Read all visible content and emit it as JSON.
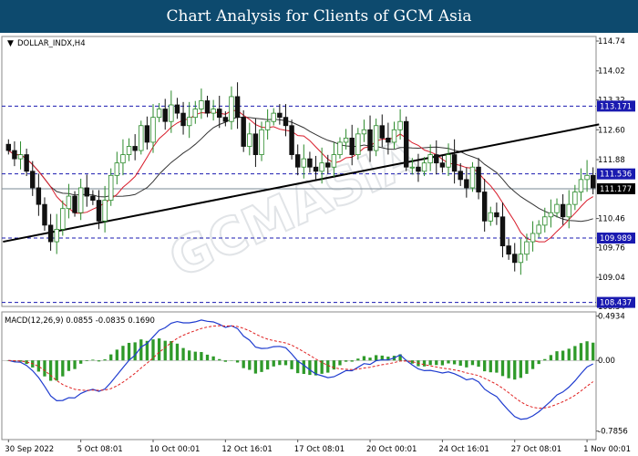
{
  "header": {
    "title": "Chart Analysis for Clients of GCM Asia"
  },
  "chart_data": {
    "type": "candlestick",
    "symbol_label": "DOLLAR_INDX,H4",
    "watermark": "GCMASIA",
    "price_axis": {
      "ylim": [
        108.34,
        114.85
      ],
      "ticks": [
        114.74,
        114.02,
        113.32,
        112.6,
        111.88,
        110.46,
        109.76,
        109.04,
        108.34
      ]
    },
    "levels": [
      {
        "value": 113.171,
        "label": "113.171",
        "style": "dashed",
        "color": "#1a1ab0"
      },
      {
        "value": 111.536,
        "label": "111.536",
        "style": "dashed",
        "color": "#1a1ab0"
      },
      {
        "value": 111.177,
        "label": "111.177",
        "style": "solid",
        "color": "#7a8a96"
      },
      {
        "value": 109.989,
        "label": "109.989",
        "style": "dashed",
        "color": "#1a1ab0"
      },
      {
        "value": 108.437,
        "label": "108.437",
        "style": "dashed",
        "color": "#1a1ab0"
      }
    ],
    "trendline": {
      "from": [
        0,
        109.9
      ],
      "to": [
        98,
        112.73
      ]
    },
    "time_axis": {
      "labels": [
        {
          "i": 0,
          "text": "30 Sep 2022"
        },
        {
          "i": 12,
          "text": "5 Oct 08:01"
        },
        {
          "i": 24,
          "text": "10 Oct 00:01"
        },
        {
          "i": 36,
          "text": "12 Oct 16:01"
        },
        {
          "i": 48,
          "text": "17 Oct 08:01"
        },
        {
          "i": 60,
          "text": "20 Oct 00:01"
        },
        {
          "i": 72,
          "text": "24 Oct 16:01"
        },
        {
          "i": 84,
          "text": "27 Oct 08:01"
        },
        {
          "i": 96,
          "text": "1 Nov 00:01"
        }
      ]
    },
    "close": [
      112.1,
      111.9,
      112.0,
      111.6,
      111.2,
      110.8,
      110.3,
      109.9,
      110.2,
      110.7,
      111.0,
      110.6,
      111.2,
      111.0,
      110.9,
      110.4,
      110.9,
      111.5,
      111.8,
      112.0,
      112.2,
      112.1,
      112.7,
      112.3,
      112.9,
      113.1,
      112.8,
      113.2,
      113.0,
      112.7,
      112.9,
      113.1,
      113.3,
      113.0,
      113.1,
      112.9,
      112.8,
      113.4,
      112.9,
      112.2,
      112.5,
      112.0,
      112.6,
      112.8,
      113.0,
      112.9,
      112.7,
      112.0,
      111.7,
      111.9,
      111.7,
      111.6,
      111.8,
      111.7,
      112.0,
      112.3,
      112.4,
      112.0,
      112.5,
      112.6,
      112.1,
      112.7,
      112.4,
      112.3,
      112.6,
      112.8,
      111.7,
      111.7,
      111.6,
      111.8,
      112.0,
      111.8,
      111.7,
      112.0,
      111.6,
      111.4,
      111.2,
      111.7,
      111.1,
      110.4,
      110.6,
      110.5,
      109.8,
      109.6,
      109.4,
      109.6,
      109.9,
      110.1,
      110.3,
      110.5,
      110.6,
      110.8,
      110.5,
      110.8,
      111.1,
      111.4,
      111.5,
      111.2
    ],
    "moving_averages": [
      {
        "name": "MA fast",
        "color": "#d81b2a"
      },
      {
        "name": "MA slow",
        "color": "#333333"
      }
    ],
    "macd": {
      "label": "MACD(12,26,9) 0.0855 -0.0835 0.1690",
      "ylim": [
        -0.88,
        0.54
      ],
      "ticks": [
        0.4934,
        0.0,
        -0.7856
      ],
      "tick_labels": [
        "0.4934",
        "0.00",
        "-0.7856"
      ],
      "colors": {
        "histogram": "#2f9a2a",
        "macd": "#1f3ccf",
        "signal": "#e02020"
      }
    }
  }
}
